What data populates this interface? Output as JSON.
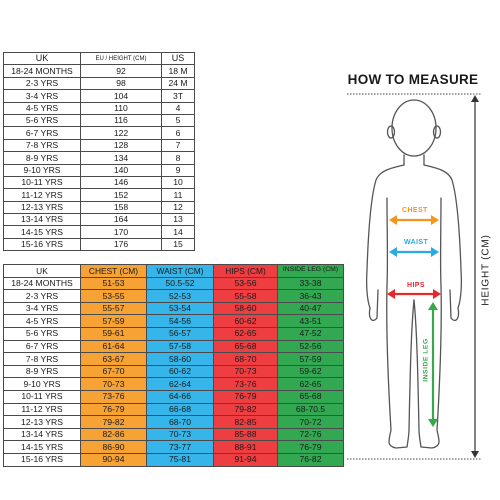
{
  "table1": {
    "headers": [
      "UK",
      "EU / HEIGHT (CM)",
      "US"
    ],
    "rows": [
      [
        "18-24 MONTHS",
        "92",
        "18 M"
      ],
      [
        "2-3 YRS",
        "98",
        "24 M"
      ],
      [
        "3-4 YRS",
        "104",
        "3T"
      ],
      [
        "4-5 YRS",
        "110",
        "4"
      ],
      [
        "5-6 YRS",
        "116",
        "5"
      ],
      [
        "6-7 YRS",
        "122",
        "6"
      ],
      [
        "7-8 YRS",
        "128",
        "7"
      ],
      [
        "8-9 YRS",
        "134",
        "8"
      ],
      [
        "9-10 YRS",
        "140",
        "9"
      ],
      [
        "10-11 YRS",
        "146",
        "10"
      ],
      [
        "11-12 YRS",
        "152",
        "11"
      ],
      [
        "12-13 YRS",
        "158",
        "12"
      ],
      [
        "13-14 YRS",
        "164",
        "13"
      ],
      [
        "14-15 YRS",
        "170",
        "14"
      ],
      [
        "15-16 YRS",
        "176",
        "15"
      ]
    ]
  },
  "table2": {
    "headers": [
      "UK",
      "CHEST (CM)",
      "WAIST (CM)",
      "HIPS (CM)",
      "INSIDE LEG (CM)"
    ],
    "rows": [
      [
        "18-24 MONTHS",
        "51-53",
        "50.5-52",
        "53-56",
        "33-38"
      ],
      [
        "2-3 YRS",
        "53-55",
        "52-53",
        "55-58",
        "36-43"
      ],
      [
        "3-4 YRS",
        "55-57",
        "53-54",
        "58-60",
        "40-47"
      ],
      [
        "4-5 YRS",
        "57-59",
        "54-56",
        "60-62",
        "43-51"
      ],
      [
        "5-6 YRS",
        "59-61",
        "56-57",
        "62-65",
        "47-52"
      ],
      [
        "6-7 YRS",
        "61-64",
        "57-58",
        "65-68",
        "52-56"
      ],
      [
        "7-8 YRS",
        "63-67",
        "58-60",
        "68-70",
        "57-59"
      ],
      [
        "8-9 YRS",
        "67-70",
        "60-62",
        "70-73",
        "59-62"
      ],
      [
        "9-10 YRS",
        "70-73",
        "62-64",
        "73-76",
        "62-65"
      ],
      [
        "10-11 YRS",
        "73-76",
        "64-66",
        "76-79",
        "65-68"
      ],
      [
        "11-12 YRS",
        "76-79",
        "66-68",
        "79-82",
        "68-70.5"
      ],
      [
        "12-13 YRS",
        "79-82",
        "68-70",
        "82-85",
        "70-72"
      ],
      [
        "13-14 YRS",
        "82-86",
        "70-73",
        "85-88",
        "72-76"
      ],
      [
        "14-15 YRS",
        "86-90",
        "73-77",
        "88-91",
        "76-79"
      ],
      [
        "15-16 YRS",
        "90-94",
        "75-81",
        "91-94",
        "76-82"
      ]
    ]
  },
  "guide": {
    "title": "HOW TO MEASURE",
    "height_label": "HEIGHT (CM)",
    "chest_label": "CHEST",
    "waist_label": "WAIST",
    "hips_label": "HIPS",
    "inside_leg_label": "INSIDE LEG"
  },
  "colors": {
    "chest": "#f7a234",
    "waist": "#35b5ea",
    "hips": "#ef3e42",
    "inside_leg": "#33a852",
    "outline": "#555555"
  }
}
